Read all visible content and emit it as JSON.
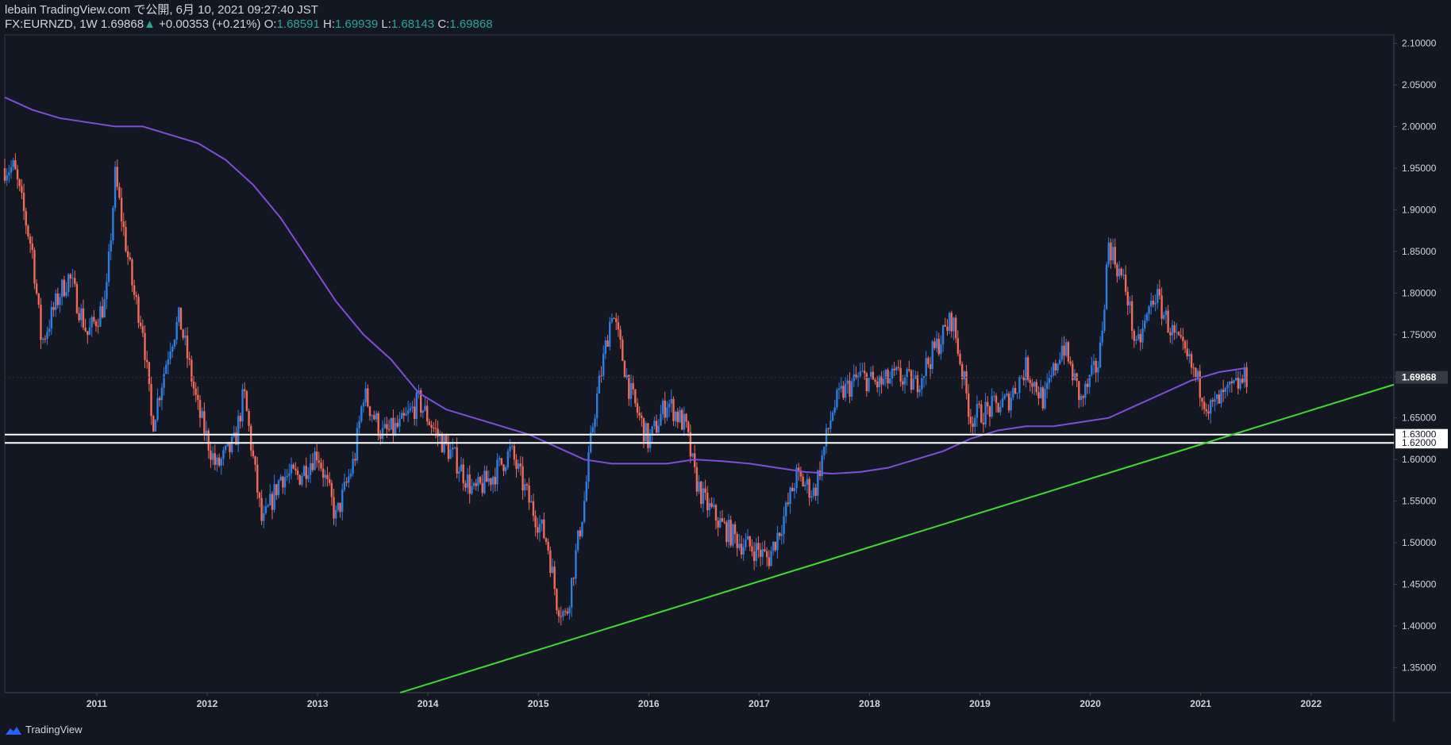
{
  "header": {
    "publish_line": "lebain TradingView.com で公開, 6月 10, 2021 09:27:40 JST",
    "symbol": "FX:EURNZD",
    "interval": "1W",
    "last": "1.69868",
    "change_arrow": "▲",
    "change": "+0.00353 (+0.21%)",
    "o_label": "O:",
    "o": "1.68591",
    "h_label": "H:",
    "h": "1.69939",
    "l_label": "L:",
    "l": "1.68143",
    "c_label": "C:",
    "c": "1.69868"
  },
  "footer": {
    "brand": "TradingView",
    "icon": "tradingview-logo-icon"
  },
  "colors": {
    "background": "#131722",
    "up": "#2e7de0",
    "down": "#f06a5a",
    "ma": "#7e4fd6",
    "trendline": "#3ddc2e",
    "level": "#ffffff",
    "axis_text": "#d1d4dc",
    "ohlc_value": "#26a69a"
  },
  "chart_data": {
    "type": "candlestick",
    "title": "FX:EURNZD, 1W",
    "x_start": "2010-03",
    "x_end": "2022-10",
    "ylim": [
      1.32,
      2.11
    ],
    "y_ticks": [
      "2.10000",
      "2.05000",
      "2.00000",
      "1.95000",
      "1.90000",
      "1.85000",
      "1.80000",
      "1.75000",
      "1.70000",
      "1.65000",
      "1.60000",
      "1.55000",
      "1.50000",
      "1.45000",
      "1.40000",
      "1.35000"
    ],
    "x_ticks": [
      "2011",
      "2012",
      "2013",
      "2014",
      "2015",
      "2016",
      "2017",
      "2018",
      "2019",
      "2020",
      "2021",
      "2022"
    ],
    "last_price_label": "1.69868",
    "last_price": 1.69868,
    "levels": [
      {
        "price": 1.63,
        "label": "1.63000"
      },
      {
        "price": 1.62,
        "label": "1.62000"
      }
    ],
    "trendline": {
      "from": {
        "date": "2013-10",
        "price": 1.32
      },
      "to": {
        "date": "2022-10",
        "price": 1.69
      }
    },
    "price_path": [
      [
        "2010-03",
        1.95
      ],
      [
        "2010-04",
        1.95
      ],
      [
        "2010-06",
        1.85
      ],
      [
        "2010-07",
        1.74
      ],
      [
        "2010-09",
        1.8
      ],
      [
        "2010-10",
        1.82
      ],
      [
        "2010-12",
        1.75
      ],
      [
        "2011-02",
        1.79
      ],
      [
        "2011-03",
        1.94
      ],
      [
        "2011-05",
        1.8
      ],
      [
        "2011-06",
        1.76
      ],
      [
        "2011-07",
        1.64
      ],
      [
        "2011-09",
        1.74
      ],
      [
        "2011-10",
        1.77
      ],
      [
        "2011-12",
        1.66
      ],
      [
        "2012-02",
        1.59
      ],
      [
        "2012-04",
        1.62
      ],
      [
        "2012-05",
        1.68
      ],
      [
        "2012-07",
        1.52
      ],
      [
        "2012-09",
        1.58
      ],
      [
        "2012-11",
        1.58
      ],
      [
        "2013-01",
        1.61
      ],
      [
        "2013-03",
        1.53
      ],
      [
        "2013-05",
        1.6
      ],
      [
        "2013-06",
        1.68
      ],
      [
        "2013-08",
        1.63
      ],
      [
        "2013-10",
        1.64
      ],
      [
        "2013-12",
        1.67
      ],
      [
        "2014-02",
        1.63
      ],
      [
        "2014-04",
        1.6
      ],
      [
        "2014-06",
        1.56
      ],
      [
        "2014-08",
        1.58
      ],
      [
        "2014-10",
        1.61
      ],
      [
        "2014-12",
        1.55
      ],
      [
        "2015-02",
        1.5
      ],
      [
        "2015-03",
        1.43
      ],
      [
        "2015-04",
        1.41
      ],
      [
        "2015-06",
        1.55
      ],
      [
        "2015-07",
        1.65
      ],
      [
        "2015-09",
        1.78
      ],
      [
        "2015-11",
        1.68
      ],
      [
        "2016-01",
        1.62
      ],
      [
        "2016-03",
        1.67
      ],
      [
        "2016-05",
        1.64
      ],
      [
        "2016-06",
        1.58
      ],
      [
        "2016-07",
        1.55
      ],
      [
        "2016-09",
        1.52
      ],
      [
        "2016-11",
        1.5
      ],
      [
        "2017-01",
        1.49
      ],
      [
        "2017-02",
        1.48
      ],
      [
        "2017-04",
        1.54
      ],
      [
        "2017-05",
        1.58
      ],
      [
        "2017-07",
        1.56
      ],
      [
        "2017-09",
        1.66
      ],
      [
        "2017-10",
        1.68
      ],
      [
        "2017-12",
        1.7
      ],
      [
        "2018-02",
        1.69
      ],
      [
        "2018-04",
        1.7
      ],
      [
        "2018-06",
        1.69
      ],
      [
        "2018-08",
        1.73
      ],
      [
        "2018-10",
        1.77
      ],
      [
        "2018-12",
        1.65
      ],
      [
        "2019-02",
        1.66
      ],
      [
        "2019-04",
        1.67
      ],
      [
        "2019-06",
        1.71
      ],
      [
        "2019-08",
        1.67
      ],
      [
        "2019-10",
        1.74
      ],
      [
        "2019-12",
        1.67
      ],
      [
        "2020-02",
        1.72
      ],
      [
        "2020-03",
        1.86
      ],
      [
        "2020-05",
        1.8
      ],
      [
        "2020-06",
        1.73
      ],
      [
        "2020-08",
        1.8
      ],
      [
        "2020-10",
        1.75
      ],
      [
        "2020-12",
        1.71
      ],
      [
        "2021-02",
        1.66
      ],
      [
        "2021-04",
        1.68
      ],
      [
        "2021-06",
        1.699
      ]
    ],
    "moving_average": [
      [
        "2010-03",
        2.035
      ],
      [
        "2010-06",
        2.02
      ],
      [
        "2010-09",
        2.01
      ],
      [
        "2010-12",
        2.005
      ],
      [
        "2011-03",
        2.0
      ],
      [
        "2011-06",
        2.0
      ],
      [
        "2011-09",
        1.99
      ],
      [
        "2011-12",
        1.98
      ],
      [
        "2012-03",
        1.96
      ],
      [
        "2012-06",
        1.93
      ],
      [
        "2012-09",
        1.89
      ],
      [
        "2012-12",
        1.84
      ],
      [
        "2013-03",
        1.79
      ],
      [
        "2013-06",
        1.75
      ],
      [
        "2013-09",
        1.72
      ],
      [
        "2013-12",
        1.68
      ],
      [
        "2014-03",
        1.66
      ],
      [
        "2014-06",
        1.65
      ],
      [
        "2014-09",
        1.64
      ],
      [
        "2014-12",
        1.63
      ],
      [
        "2015-03",
        1.615
      ],
      [
        "2015-06",
        1.6
      ],
      [
        "2015-09",
        1.595
      ],
      [
        "2015-12",
        1.595
      ],
      [
        "2016-03",
        1.595
      ],
      [
        "2016-06",
        1.6
      ],
      [
        "2016-09",
        1.598
      ],
      [
        "2016-12",
        1.595
      ],
      [
        "2017-03",
        1.59
      ],
      [
        "2017-06",
        1.585
      ],
      [
        "2017-09",
        1.583
      ],
      [
        "2017-12",
        1.585
      ],
      [
        "2018-03",
        1.59
      ],
      [
        "2018-06",
        1.6
      ],
      [
        "2018-09",
        1.61
      ],
      [
        "2018-12",
        1.625
      ],
      [
        "2019-03",
        1.635
      ],
      [
        "2019-06",
        1.64
      ],
      [
        "2019-09",
        1.64
      ],
      [
        "2019-12",
        1.645
      ],
      [
        "2020-03",
        1.65
      ],
      [
        "2020-06",
        1.665
      ],
      [
        "2020-09",
        1.68
      ],
      [
        "2020-12",
        1.695
      ],
      [
        "2021-03",
        1.705
      ],
      [
        "2021-06",
        1.71
      ]
    ]
  }
}
